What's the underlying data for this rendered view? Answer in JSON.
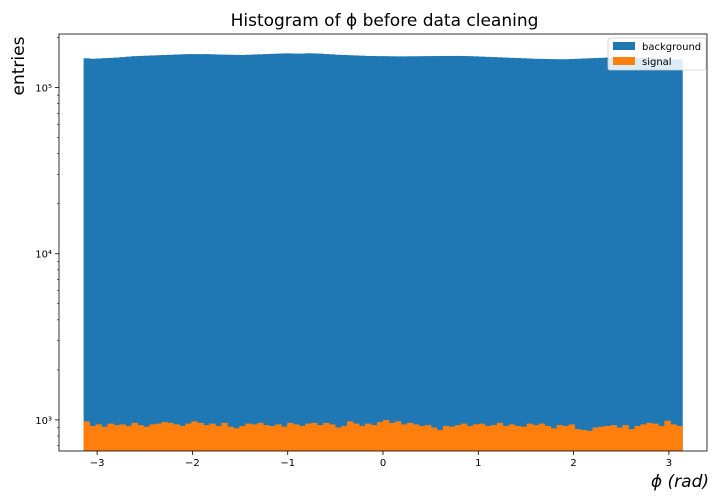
{
  "chart_data": {
    "type": "bar",
    "title": "Histogram of ϕ before data cleaning",
    "xlabel": "ϕ (rad)",
    "ylabel": "entries",
    "xlim": [
      -3.4,
      3.4
    ],
    "ylim": [
      650,
      210000
    ],
    "yscale": "log",
    "grid": false,
    "legend_position": "top-right",
    "x_ticks": [
      -3,
      -2,
      -1,
      0,
      1,
      2,
      3
    ],
    "x_tick_labels": [
      "−3",
      "−2",
      "−1",
      "0",
      "1",
      "2",
      "3"
    ],
    "y_ticks": [
      1000,
      10000,
      100000
    ],
    "y_tick_labels": [
      "10³",
      "10⁴",
      "10⁵"
    ],
    "bins": {
      "start": -3.1416,
      "end": 3.1416,
      "count": 100
    },
    "series": [
      {
        "name": "background",
        "color": "#1f77b4",
        "values": [
          150000,
          149000,
          149500,
          150200,
          150800,
          151500,
          152500,
          153500,
          154500,
          155000,
          155500,
          156000,
          156500,
          157000,
          157500,
          158000,
          158500,
          159000,
          159000,
          158800,
          159000,
          158500,
          158000,
          157800,
          157500,
          157200,
          157000,
          157500,
          158000,
          158500,
          159000,
          159500,
          160000,
          160500,
          160500,
          160000,
          160200,
          160800,
          160500,
          160000,
          159000,
          158500,
          157500,
          157000,
          156500,
          156000,
          155500,
          155000,
          154800,
          154500,
          154500,
          154200,
          154000,
          154000,
          154200,
          154300,
          154500,
          154600,
          154700,
          154800,
          154900,
          155000,
          155000,
          154800,
          154500,
          154000,
          153500,
          153000,
          152500,
          152000,
          151500,
          151000,
          150500,
          150000,
          149500,
          149000,
          148800,
          148500,
          148300,
          148000,
          148000,
          148500,
          149000,
          149500,
          150000,
          150500,
          151000,
          151500,
          152000,
          152000,
          151800,
          151500,
          151000,
          150500,
          150000,
          149500,
          149000,
          148500,
          148000,
          147500
        ]
      },
      {
        "name": "signal",
        "color": "#ff7f0e",
        "values": [
          980,
          920,
          940,
          910,
          950,
          930,
          940,
          920,
          960,
          930,
          910,
          940,
          950,
          970,
          960,
          940,
          920,
          950,
          980,
          960,
          930,
          950,
          920,
          960,
          910,
          890,
          920,
          950,
          940,
          960,
          930,
          920,
          940,
          910,
          960,
          940,
          920,
          950,
          960,
          930,
          960,
          940,
          900,
          920,
          980,
          950,
          920,
          950,
          930,
          970,
          1000,
          960,
          980,
          940,
          960,
          940,
          920,
          930,
          900,
          870,
          920,
          910,
          930,
          950,
          920,
          940,
          950,
          920,
          930,
          960,
          920,
          940,
          920,
          910,
          950,
          930,
          950,
          920,
          890,
          930,
          920,
          940,
          880,
          870,
          860,
          900,
          910,
          920,
          930,
          900,
          930,
          880,
          920,
          940,
          960,
          950,
          920,
          990,
          940,
          920
        ]
      }
    ]
  }
}
